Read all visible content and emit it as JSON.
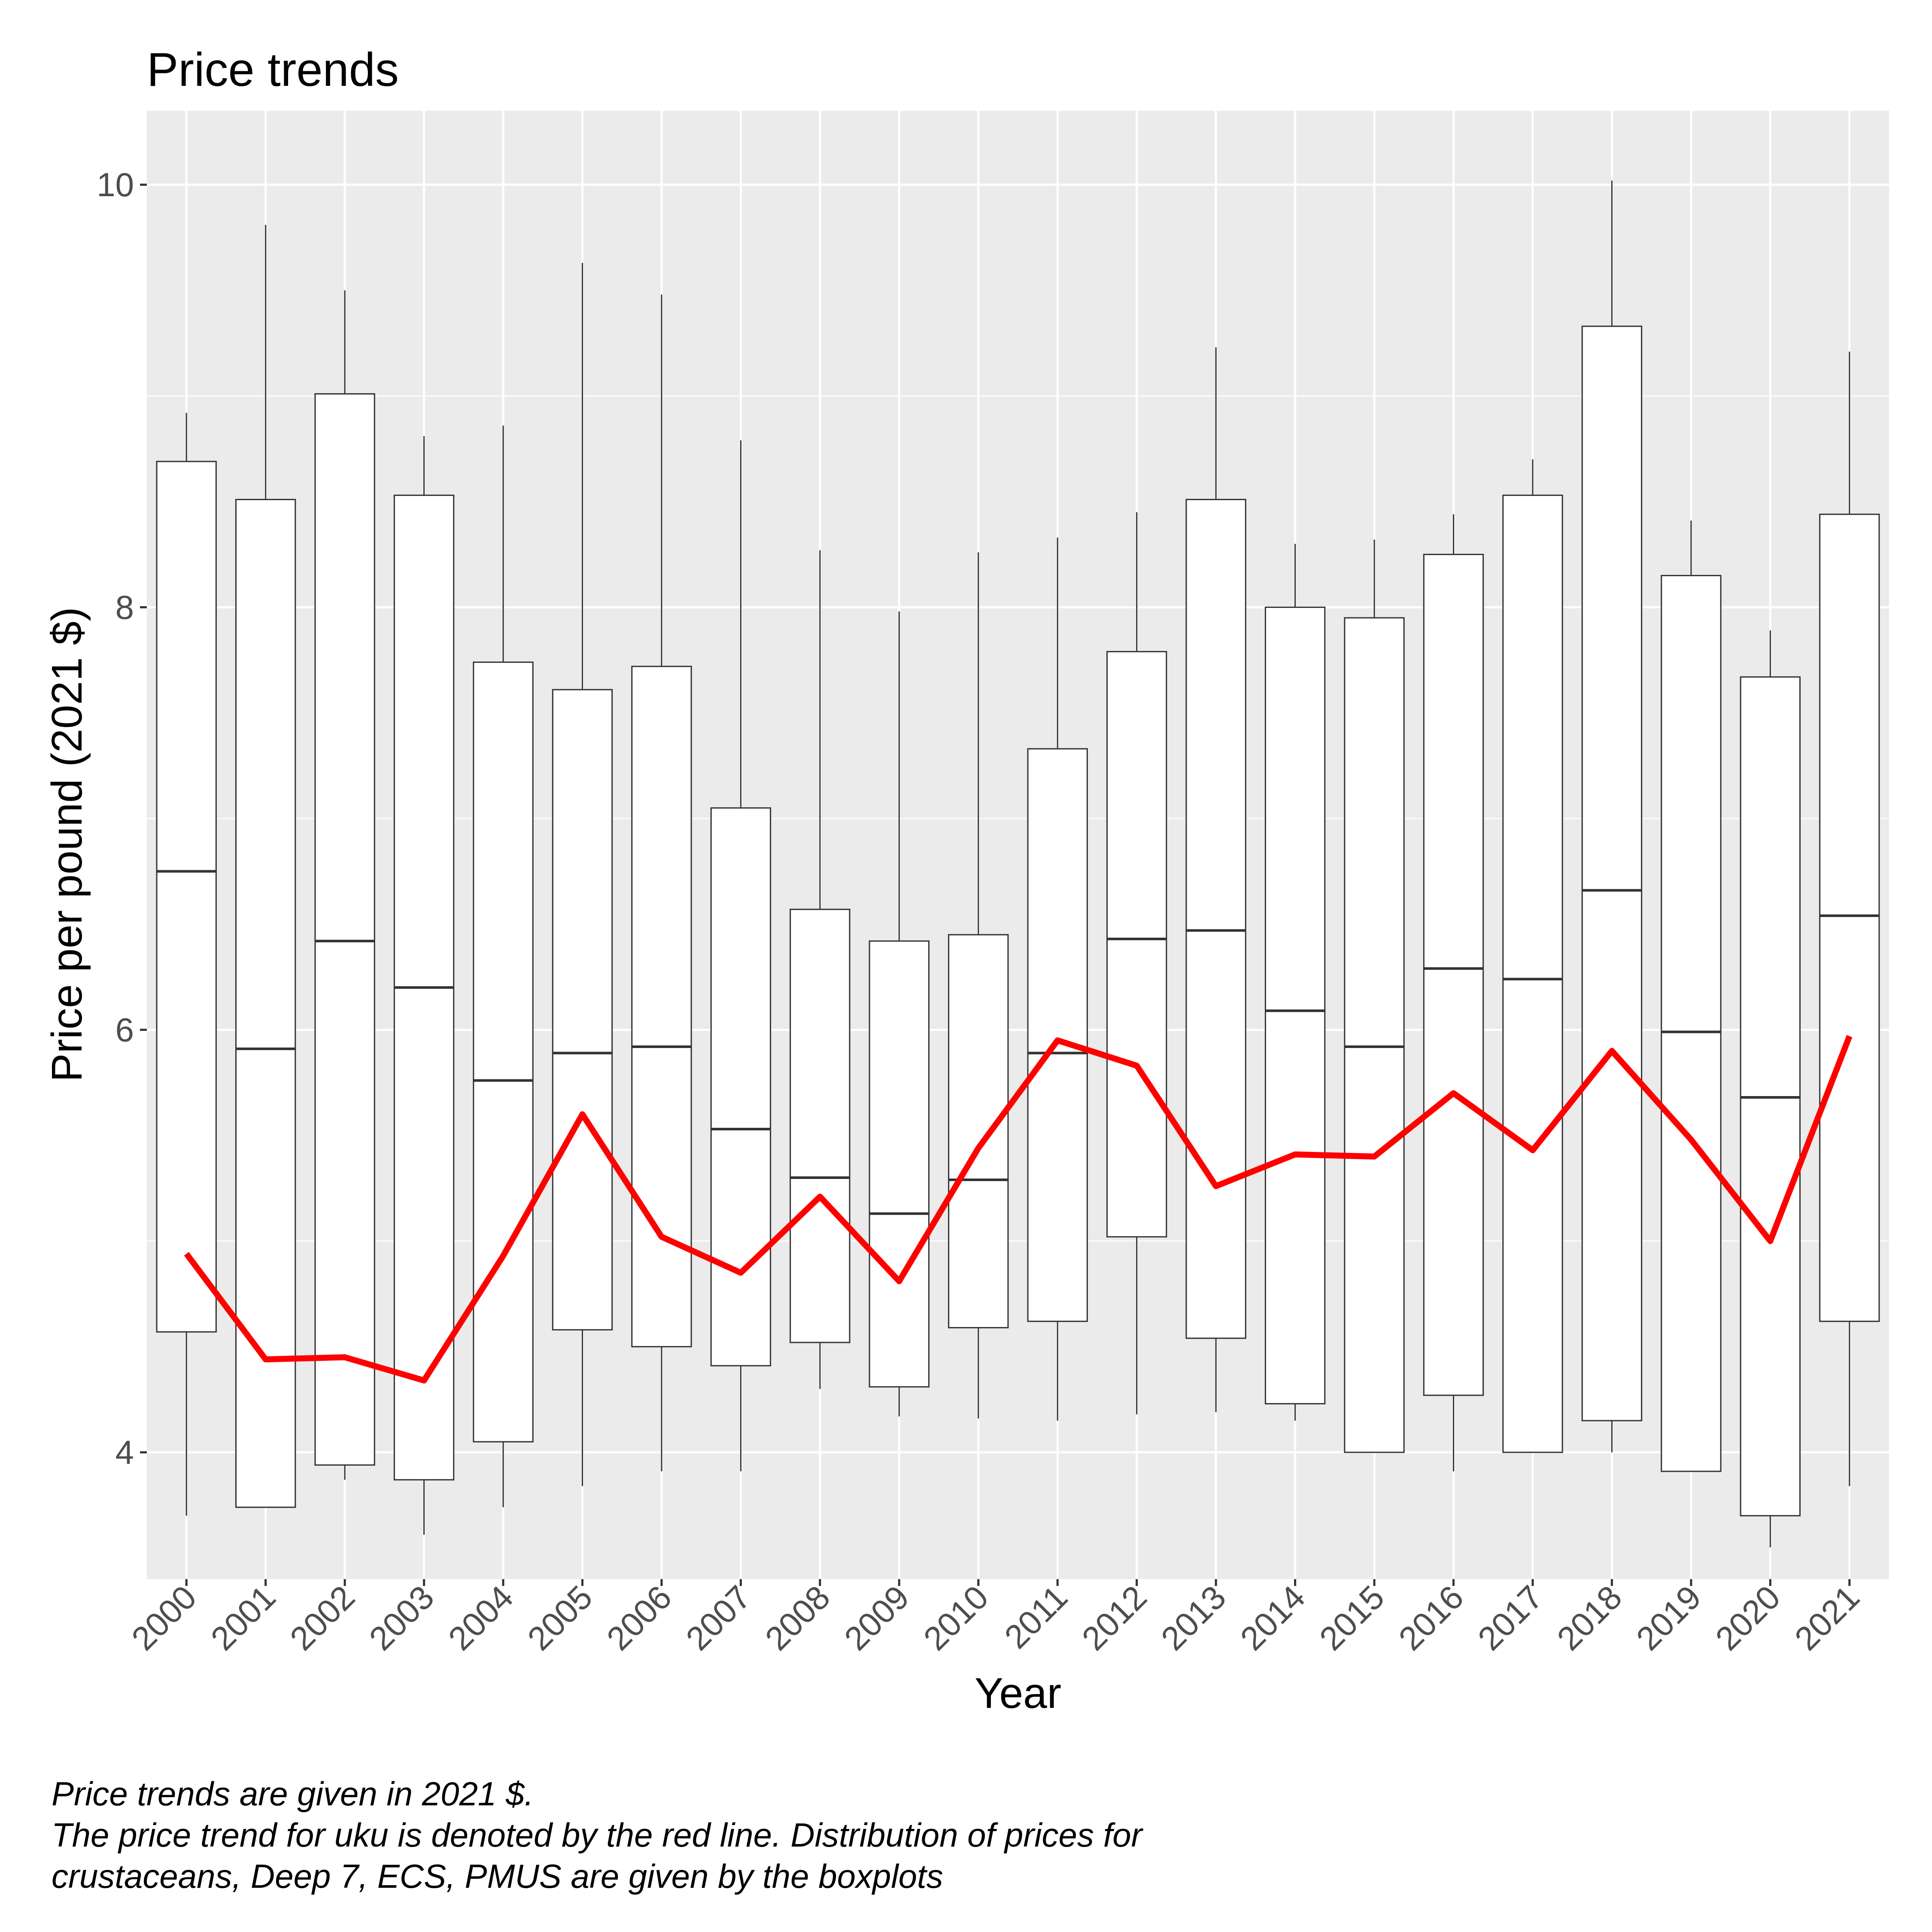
{
  "chart_data": {
    "type": "box",
    "title": "Price trends",
    "xlabel": "Year",
    "ylabel": "Price per pound (2021 $)",
    "ylim": [
      3.4,
      10.35
    ],
    "yticks": [
      4,
      6,
      8,
      10
    ],
    "grid": true,
    "categories": [
      "2000",
      "2001",
      "2002",
      "2003",
      "2004",
      "2005",
      "2006",
      "2007",
      "2008",
      "2009",
      "2010",
      "2011",
      "2012",
      "2013",
      "2014",
      "2015",
      "2016",
      "2017",
      "2018",
      "2019",
      "2020",
      "2021"
    ],
    "boxes": [
      {
        "min": 3.7,
        "q1": 4.57,
        "median": 6.75,
        "q3": 8.69,
        "max": 8.92
      },
      {
        "min": 3.74,
        "q1": 3.74,
        "median": 5.91,
        "q3": 8.51,
        "max": 9.81
      },
      {
        "min": 3.87,
        "q1": 3.94,
        "median": 6.42,
        "q3": 9.01,
        "max": 9.5
      },
      {
        "min": 3.61,
        "q1": 3.87,
        "median": 6.2,
        "q3": 8.53,
        "max": 8.81
      },
      {
        "min": 3.74,
        "q1": 4.05,
        "median": 5.76,
        "q3": 7.74,
        "max": 8.86
      },
      {
        "min": 3.84,
        "q1": 4.58,
        "median": 5.89,
        "q3": 7.61,
        "max": 9.63
      },
      {
        "min": 3.91,
        "q1": 4.5,
        "median": 5.92,
        "q3": 7.72,
        "max": 9.48
      },
      {
        "min": 3.91,
        "q1": 4.41,
        "median": 5.53,
        "q3": 7.05,
        "max": 8.79
      },
      {
        "min": 4.3,
        "q1": 4.52,
        "median": 5.3,
        "q3": 6.57,
        "max": 8.27
      },
      {
        "min": 4.17,
        "q1": 4.31,
        "median": 5.13,
        "q3": 6.42,
        "max": 7.98
      },
      {
        "min": 4.16,
        "q1": 4.59,
        "median": 5.29,
        "q3": 6.45,
        "max": 8.26
      },
      {
        "min": 4.15,
        "q1": 4.62,
        "median": 5.89,
        "q3": 7.33,
        "max": 8.33
      },
      {
        "min": 4.18,
        "q1": 5.02,
        "median": 6.43,
        "q3": 7.79,
        "max": 8.45
      },
      {
        "min": 4.19,
        "q1": 4.54,
        "median": 6.47,
        "q3": 8.51,
        "max": 9.23
      },
      {
        "min": 4.15,
        "q1": 4.23,
        "median": 6.09,
        "q3": 8.0,
        "max": 8.3
      },
      {
        "min": 4.0,
        "q1": 4.0,
        "median": 5.92,
        "q3": 7.95,
        "max": 8.32
      },
      {
        "min": 3.91,
        "q1": 4.27,
        "median": 6.29,
        "q3": 8.25,
        "max": 8.44
      },
      {
        "min": 4.0,
        "q1": 4.0,
        "median": 6.24,
        "q3": 8.53,
        "max": 8.7
      },
      {
        "min": 4.0,
        "q1": 4.15,
        "median": 6.66,
        "q3": 9.33,
        "max": 10.02
      },
      {
        "min": 3.91,
        "q1": 3.91,
        "median": 5.99,
        "q3": 8.15,
        "max": 8.41
      },
      {
        "min": 3.55,
        "q1": 3.7,
        "median": 5.68,
        "q3": 7.67,
        "max": 7.89
      },
      {
        "min": 3.84,
        "q1": 4.62,
        "median": 6.54,
        "q3": 8.44,
        "max": 9.21
      }
    ],
    "series": [
      {
        "color": "#ff0000",
        "values": [
          4.94,
          4.44,
          4.45,
          4.34,
          4.93,
          5.6,
          5.02,
          4.85,
          5.21,
          4.81,
          5.44,
          5.95,
          5.83,
          5.26,
          5.41,
          5.4,
          5.7,
          5.43,
          5.9,
          5.48,
          5.0,
          5.97
        ]
      }
    ],
    "colors": {
      "panel": "#ebebeb",
      "grid": "#ffffff",
      "box_fill": "#ffffff",
      "box_stroke": "#333333",
      "trend": "#ff0000"
    }
  },
  "caption": {
    "lines": [
      "Price trends are given in 2021 $.",
      "The price trend for uku is denoted by the red line. Distribution of prices for",
      "crustaceans, Deep 7, ECS, PMUS are given by the boxplots"
    ]
  }
}
